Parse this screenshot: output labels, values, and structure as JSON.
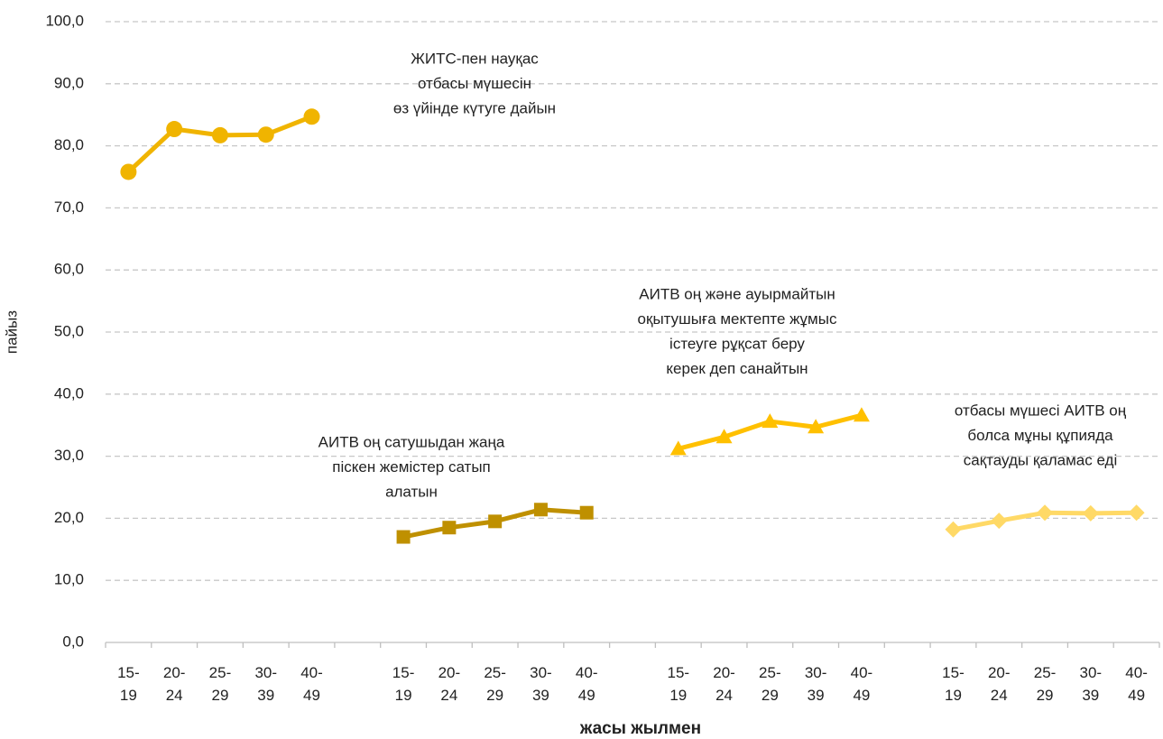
{
  "chart_data": {
    "type": "line",
    "x_label": "жасы жылмен",
    "y_label": "пайыз",
    "categories": [
      "15-19",
      "20-24",
      "25-29",
      "30-39",
      "40-49",
      null,
      "15-19",
      "20-24",
      "25-29",
      "30-39",
      "40-49",
      null,
      "15-19",
      "20-24",
      "25-29",
      "30-39",
      "40-49",
      null,
      "15-19",
      "20-24",
      "25-29",
      "30-39",
      "40-49"
    ],
    "ylim": [
      0,
      100
    ],
    "yticks": [
      {
        "value": 0,
        "label": "0,0"
      },
      {
        "value": 10,
        "label": "10,0"
      },
      {
        "value": 20,
        "label": "20,0"
      },
      {
        "value": 30,
        "label": "30,0"
      },
      {
        "value": 40,
        "label": "40,0"
      },
      {
        "value": 50,
        "label": "50,0"
      },
      {
        "value": 60,
        "label": "60,0"
      },
      {
        "value": 70,
        "label": "70,0"
      },
      {
        "value": 80,
        "label": "80,0"
      },
      {
        "value": 90,
        "label": "90,0"
      },
      {
        "value": 100,
        "label": "100,0"
      }
    ],
    "grid": true,
    "series": [
      {
        "name_lines": [
          "ЖИТС-пен науқас",
          "отбасы мүшесін",
          "өз үйінде күтуге дайын"
        ],
        "color": "#f0b400",
        "marker": "circle",
        "values": [
          75.8,
          82.7,
          81.7,
          81.8,
          84.7,
          null,
          null,
          null,
          null,
          null,
          null,
          null,
          null,
          null,
          null,
          null,
          null,
          null,
          null,
          null,
          null,
          null,
          null
        ]
      },
      {
        "name_lines": [
          "АИТВ оң сатушыдан жаңа",
          "піскен жемістер сатып",
          "алатын"
        ],
        "color": "#bf9000",
        "marker": "square",
        "values": [
          null,
          null,
          null,
          null,
          null,
          null,
          17.0,
          18.5,
          19.5,
          21.4,
          20.9,
          null,
          null,
          null,
          null,
          null,
          null,
          null,
          null,
          null,
          null,
          null,
          null
        ]
      },
      {
        "name_lines": [
          "АИТВ оң және ауырмайтын",
          "оқытушыға мектепте жұмыс",
          "істеуге рұқсат беру",
          "керек деп санайтын"
        ],
        "color": "#ffc000",
        "marker": "triangle",
        "values": [
          null,
          null,
          null,
          null,
          null,
          null,
          null,
          null,
          null,
          null,
          null,
          null,
          31.2,
          33.1,
          35.6,
          34.7,
          36.6,
          null,
          null,
          null,
          null,
          null,
          null
        ]
      },
      {
        "name_lines": [
          "отбасы мүшесі АИТВ оң",
          "болса мұны құпияда",
          "сақтауды қаламас еді"
        ],
        "color": "#ffd966",
        "marker": "diamond",
        "values": [
          null,
          null,
          null,
          null,
          null,
          null,
          null,
          null,
          null,
          null,
          null,
          null,
          null,
          null,
          null,
          null,
          null,
          null,
          18.2,
          19.6,
          20.9,
          20.8,
          20.9
        ]
      }
    ]
  }
}
